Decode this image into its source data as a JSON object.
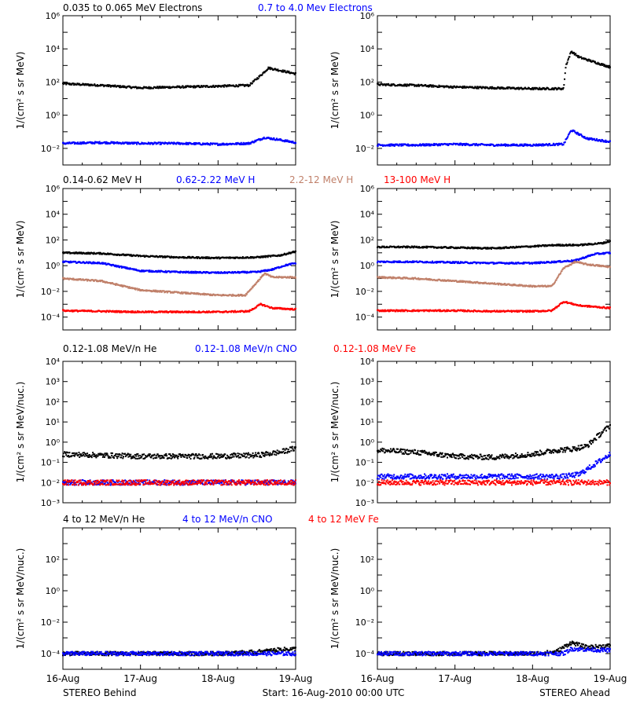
{
  "figure": {
    "x_ticks": [
      "16-Aug",
      "17-Aug",
      "18-Aug",
      "19-Aug"
    ],
    "footer_left": "STEREO Behind",
    "footer_center": "Start: 16-Aug-2010 00:00 UTC",
    "footer_right": "STEREO Ahead"
  },
  "chart_data": [
    {
      "type": "scatter",
      "row": 1,
      "legend": [
        {
          "text": "0.035 to 0.065 MeV Electrons",
          "color": "#000000"
        },
        {
          "text": "0.7 to 4.0 Mev Electrons",
          "color": "#0000ff"
        }
      ],
      "ylabel": "1/(cm² s sr MeV)",
      "yscale": "log",
      "ylim_exp": [
        -3,
        6
      ],
      "yticks": [
        {
          "exp": -2,
          "label": "10⁻²"
        },
        {
          "exp": 0,
          "label": "10⁰"
        },
        {
          "exp": 2,
          "label": "10²"
        },
        {
          "exp": 4,
          "label": "10⁴"
        },
        {
          "exp": 6,
          "label": "10⁶"
        }
      ],
      "xlim_days": [
        0,
        3
      ],
      "panels": [
        {
          "spacecraft": "STEREO Behind",
          "series": [
            {
              "color": "#000000",
              "x": [
                0,
                0.5,
                1.0,
                1.5,
                2.0,
                2.4,
                2.55,
                2.65,
                2.75,
                3.0
              ],
              "log10y": [
                1.9,
                1.8,
                1.65,
                1.7,
                1.75,
                1.8,
                2.4,
                2.85,
                2.75,
                2.5
              ]
            },
            {
              "color": "#0000ff",
              "x": [
                0,
                0.5,
                1.0,
                1.5,
                2.0,
                2.4,
                2.6,
                2.75,
                3.0
              ],
              "log10y": [
                -1.7,
                -1.65,
                -1.7,
                -1.7,
                -1.75,
                -1.7,
                -1.35,
                -1.45,
                -1.65
              ]
            }
          ]
        },
        {
          "spacecraft": "STEREO Ahead",
          "series": [
            {
              "color": "#000000",
              "x": [
                0,
                0.5,
                1.0,
                1.5,
                2.0,
                2.4,
                2.43,
                2.5,
                2.6,
                3.0
              ],
              "log10y": [
                1.85,
                1.8,
                1.7,
                1.65,
                1.6,
                1.6,
                3.0,
                3.85,
                3.5,
                2.9
              ]
            },
            {
              "color": "#0000ff",
              "x": [
                0,
                0.5,
                1.0,
                1.5,
                2.0,
                2.4,
                2.5,
                2.7,
                3.0
              ],
              "log10y": [
                -1.8,
                -1.8,
                -1.75,
                -1.8,
                -1.8,
                -1.75,
                -0.9,
                -1.4,
                -1.6
              ]
            }
          ]
        }
      ]
    },
    {
      "type": "scatter",
      "row": 2,
      "legend": [
        {
          "text": "0.14-0.62 MeV H",
          "color": "#000000"
        },
        {
          "text": "0.62-2.22 MeV H",
          "color": "#0000ff"
        },
        {
          "text": "2.2-12 MeV H",
          "color": "#c0806a"
        },
        {
          "text": "13-100 MeV H",
          "color": "#ff0000"
        }
      ],
      "ylabel": "1/(cm² s sr MeV)",
      "yscale": "log",
      "ylim_exp": [
        -5,
        6
      ],
      "yticks": [
        {
          "exp": -4,
          "label": "10⁻⁴"
        },
        {
          "exp": -2,
          "label": "10⁻²"
        },
        {
          "exp": 0,
          "label": "10⁰"
        },
        {
          "exp": 2,
          "label": "10²"
        },
        {
          "exp": 4,
          "label": "10⁴"
        },
        {
          "exp": 6,
          "label": "10⁶"
        }
      ],
      "xlim_days": [
        0,
        3
      ],
      "panels": [
        {
          "spacecraft": "STEREO Behind",
          "series": [
            {
              "color": "#000000",
              "x": [
                0,
                0.5,
                1.0,
                1.5,
                2.0,
                2.5,
                2.8,
                3.0
              ],
              "log10y": [
                1.0,
                0.95,
                0.75,
                0.65,
                0.6,
                0.65,
                0.8,
                1.1
              ]
            },
            {
              "color": "#0000ff",
              "x": [
                0,
                0.5,
                1.0,
                1.5,
                2.0,
                2.5,
                2.7,
                2.85,
                3.0
              ],
              "log10y": [
                0.3,
                0.2,
                -0.4,
                -0.5,
                -0.55,
                -0.5,
                -0.3,
                0.0,
                0.2
              ]
            },
            {
              "color": "#c0806a",
              "x": [
                0,
                0.5,
                1.0,
                1.5,
                2.0,
                2.35,
                2.5,
                2.6,
                2.7,
                3.0
              ],
              "log10y": [
                -1.0,
                -1.2,
                -1.9,
                -2.1,
                -2.3,
                -2.3,
                -1.3,
                -0.6,
                -0.9,
                -0.9
              ]
            },
            {
              "color": "#ff0000",
              "x": [
                0,
                0.5,
                1.0,
                1.5,
                2.0,
                2.4,
                2.55,
                2.7,
                3.0
              ],
              "log10y": [
                -3.5,
                -3.55,
                -3.6,
                -3.6,
                -3.6,
                -3.55,
                -3.0,
                -3.3,
                -3.4
              ]
            }
          ]
        },
        {
          "spacecraft": "STEREO Ahead",
          "series": [
            {
              "color": "#000000",
              "x": [
                0,
                0.5,
                1.0,
                1.5,
                2.0,
                2.3,
                2.6,
                2.9,
                3.0
              ],
              "log10y": [
                1.45,
                1.45,
                1.4,
                1.35,
                1.5,
                1.6,
                1.6,
                1.75,
                1.9
              ]
            },
            {
              "color": "#0000ff",
              "x": [
                0,
                0.5,
                1.0,
                1.5,
                2.0,
                2.3,
                2.55,
                2.8,
                3.0
              ],
              "log10y": [
                0.3,
                0.3,
                0.25,
                0.2,
                0.2,
                0.3,
                0.4,
                0.9,
                1.0
              ]
            },
            {
              "color": "#c0806a",
              "x": [
                0,
                0.5,
                1.0,
                1.5,
                2.0,
                2.25,
                2.4,
                2.55,
                2.7,
                3.0
              ],
              "log10y": [
                -0.9,
                -1.0,
                -1.2,
                -1.4,
                -1.6,
                -1.6,
                -0.2,
                0.3,
                0.1,
                -0.1
              ]
            },
            {
              "color": "#ff0000",
              "x": [
                0,
                0.5,
                1.0,
                1.5,
                2.0,
                2.25,
                2.4,
                2.6,
                3.0
              ],
              "log10y": [
                -3.5,
                -3.5,
                -3.5,
                -3.55,
                -3.55,
                -3.5,
                -2.8,
                -3.1,
                -3.3
              ]
            }
          ]
        }
      ]
    },
    {
      "type": "scatter",
      "row": 3,
      "legend": [
        {
          "text": "0.12-1.08 MeV/n He",
          "color": "#000000"
        },
        {
          "text": "0.12-1.08 MeV/n CNO",
          "color": "#0000ff"
        },
        {
          "text": "0.12-1.08 MeV Fe",
          "color": "#ff0000"
        }
      ],
      "ylabel": "1/(cm² s sr MeV/nuc.)",
      "yscale": "log",
      "ylim_exp": [
        -3,
        4
      ],
      "yticks": [
        {
          "exp": -3,
          "label": "10⁻³"
        },
        {
          "exp": -2,
          "label": "10⁻²"
        },
        {
          "exp": -1,
          "label": "10⁻¹"
        },
        {
          "exp": 0,
          "label": "10⁰"
        },
        {
          "exp": 1,
          "label": "10¹"
        },
        {
          "exp": 2,
          "label": "10²"
        },
        {
          "exp": 3,
          "label": "10³"
        },
        {
          "exp": 4,
          "label": "10⁴"
        }
      ],
      "xlim_days": [
        0,
        3
      ],
      "panels": [
        {
          "spacecraft": "STEREO Behind",
          "series": [
            {
              "color": "#000000",
              "x": [
                0,
                0.5,
                1.0,
                1.5,
                2.0,
                2.5,
                2.8,
                3.0
              ],
              "log10y": [
                -0.6,
                -0.65,
                -0.7,
                -0.7,
                -0.7,
                -0.65,
                -0.5,
                -0.3
              ]
            },
            {
              "color": "#0000ff",
              "x": [
                0,
                3.0
              ],
              "log10y": [
                -2.0,
                -2.0
              ]
            },
            {
              "color": "#ff0000",
              "x": [
                0,
                3.0
              ],
              "log10y": [
                -2.0,
                -2.0
              ]
            }
          ]
        },
        {
          "spacecraft": "STEREO Ahead",
          "series": [
            {
              "color": "#000000",
              "x": [
                0,
                0.5,
                1.0,
                1.5,
                2.0,
                2.3,
                2.5,
                2.7,
                2.9,
                3.0
              ],
              "log10y": [
                -0.4,
                -0.5,
                -0.7,
                -0.75,
                -0.6,
                -0.4,
                -0.35,
                -0.2,
                0.5,
                0.8
              ]
            },
            {
              "color": "#0000ff",
              "x": [
                0,
                2.4,
                2.6,
                2.8,
                3.0
              ],
              "log10y": [
                -1.7,
                -1.7,
                -1.6,
                -1.1,
                -0.6
              ]
            },
            {
              "color": "#ff0000",
              "x": [
                0,
                3.0
              ],
              "log10y": [
                -2.0,
                -2.0
              ]
            }
          ]
        }
      ]
    },
    {
      "type": "scatter",
      "row": 4,
      "legend": [
        {
          "text": "4 to 12 MeV/n He",
          "color": "#000000"
        },
        {
          "text": "4 to 12 MeV/n CNO",
          "color": "#0000ff"
        },
        {
          "text": "4 to 12 MeV Fe",
          "color": "#ff0000"
        }
      ],
      "ylabel": "1/(cm² s sr MeV/nuc.)",
      "yscale": "log",
      "ylim_exp": [
        -5,
        4
      ],
      "yticks": [
        {
          "exp": -4,
          "label": "10⁻⁴"
        },
        {
          "exp": -2,
          "label": "10⁻²"
        },
        {
          "exp": 0,
          "label": "10⁰"
        },
        {
          "exp": 2,
          "label": "10²"
        }
      ],
      "xlim_days": [
        0,
        3
      ],
      "panels": [
        {
          "spacecraft": "STEREO Behind",
          "series": [
            {
              "color": "#000000",
              "x": [
                0,
                0.5,
                1.0,
                1.5,
                2.0,
                2.5,
                2.8,
                3.0
              ],
              "log10y": [
                -4.0,
                -4.0,
                -4.0,
                -4.0,
                -4.0,
                -3.9,
                -3.75,
                -3.7
              ]
            },
            {
              "color": "#0000ff",
              "x": [
                0,
                3.0
              ],
              "log10y": [
                -4.0,
                -4.0
              ]
            }
          ]
        },
        {
          "spacecraft": "STEREO Ahead",
          "series": [
            {
              "color": "#000000",
              "x": [
                0,
                0.5,
                1.0,
                1.5,
                2.0,
                2.3,
                2.5,
                2.7,
                3.0
              ],
              "log10y": [
                -4.0,
                -4.0,
                -4.0,
                -4.0,
                -4.0,
                -3.9,
                -3.3,
                -3.6,
                -3.5
              ]
            },
            {
              "color": "#0000ff",
              "x": [
                0,
                2.4,
                2.5,
                3.0
              ],
              "log10y": [
                -4.0,
                -4.0,
                -3.7,
                -3.8
              ]
            }
          ]
        }
      ]
    }
  ]
}
